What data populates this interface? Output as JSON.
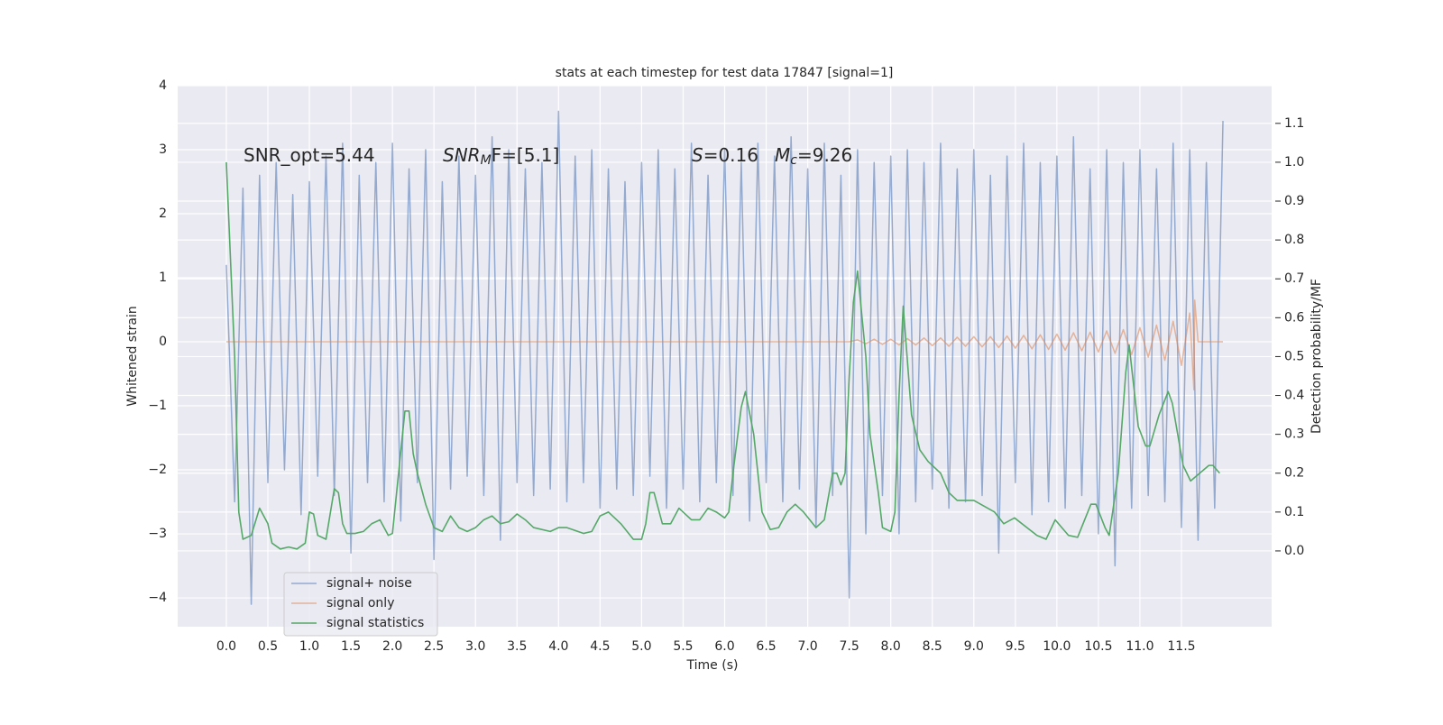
{
  "chart_data": {
    "type": "line",
    "title": "stats at each timestep for test data 17847 [signal=1]",
    "x_label": "Time (s)",
    "y_label": "Whitened strain",
    "y2_label": "Detection probability/MF",
    "xlim": [
      -0.586,
      12.586
    ],
    "ylim": [
      -4.45,
      4
    ],
    "y2lim": [
      -0.195,
      1.197
    ],
    "xticks": [
      {
        "value": 0,
        "label": "0.0"
      },
      0.5,
      {
        "value": 1,
        "label": "1.0"
      },
      1.5,
      {
        "value": 2,
        "label": "2.0"
      },
      2.5,
      {
        "value": 3,
        "label": "3.0"
      },
      3.5,
      {
        "value": 4,
        "label": "4.0"
      },
      4.5,
      {
        "value": 5,
        "label": "5.0"
      },
      5.5,
      {
        "value": 6,
        "label": "6.0"
      },
      6.5,
      {
        "value": 7,
        "label": "7.0"
      },
      7.5,
      {
        "value": 8,
        "label": "8.0"
      },
      8.5,
      {
        "value": 9,
        "label": "9.0"
      },
      9.5,
      {
        "value": 10,
        "label": "10.0"
      },
      10.5,
      {
        "value": 11,
        "label": "11.0"
      },
      11.5
    ],
    "yticks": [
      {
        "value": -4,
        "label": "−4"
      },
      {
        "value": -3,
        "label": "−3"
      },
      {
        "value": -2,
        "label": "−2"
      },
      {
        "value": -1,
        "label": "−1"
      },
      0,
      1,
      2,
      3,
      4
    ],
    "y2ticks": [
      {
        "value": 0,
        "label": "0.0"
      },
      0.1,
      0.2,
      0.3,
      0.4,
      0.5,
      0.6,
      0.7,
      0.8,
      0.9,
      {
        "value": 1,
        "label": "1.0"
      },
      1.1
    ],
    "grid": true,
    "legend": "lower left",
    "annotations": [
      {
        "rest": "SNR_opt=5.44"
      },
      {
        "base": "SNR",
        "sub": "M",
        "rest": "F=[5.1]"
      },
      {
        "base": "S",
        "rest": "=0.16"
      },
      {
        "base": "M",
        "sub": "c",
        "rest": "=9.26"
      }
    ],
    "series": [
      {
        "name": "signal+ noise",
        "color": "#4c72b0",
        "x": [
          0,
          0.1,
          0.2,
          0.3,
          0.4,
          0.5,
          0.6,
          0.7,
          0.8,
          0.9,
          1,
          1.1,
          1.2,
          1.3,
          1.4,
          1.5,
          1.6,
          1.7,
          1.8,
          1.9,
          2,
          2.1,
          2.2,
          2.3,
          2.4,
          2.5,
          2.6,
          2.7,
          2.8,
          2.9,
          3,
          3.1,
          3.2,
          3.3,
          3.4,
          3.5,
          3.6,
          3.7,
          3.8,
          3.9,
          4,
          4.1,
          4.2,
          4.3,
          4.4,
          4.5,
          4.6,
          4.7,
          4.8,
          4.9,
          5,
          5.1,
          5.2,
          5.3,
          5.4,
          5.5,
          5.6,
          5.7,
          5.8,
          5.9,
          6,
          6.1,
          6.2,
          6.3,
          6.4,
          6.5,
          6.6,
          6.7,
          6.8,
          6.9,
          7,
          7.1,
          7.2,
          7.3,
          7.4,
          7.5,
          7.6,
          7.7,
          7.8,
          7.9,
          8,
          8.1,
          8.2,
          8.3,
          8.4,
          8.5,
          8.6,
          8.7,
          8.8,
          8.9,
          9,
          9.1,
          9.2,
          9.3,
          9.4,
          9.5,
          9.6,
          9.7,
          9.8,
          9.9,
          10,
          10.1,
          10.2,
          10.3,
          10.4,
          10.5,
          10.6,
          10.7,
          10.8,
          10.9,
          11,
          11.1,
          11.2,
          11.3,
          11.4,
          11.5,
          11.6,
          11.7,
          11.8,
          11.9,
          12
        ],
        "values": [
          1.2,
          -2.5,
          2.4,
          -4.1,
          2.6,
          -2.2,
          2.8,
          -2.0,
          2.3,
          -2.7,
          2.5,
          -2.1,
          2.9,
          -2.4,
          3.1,
          -3.3,
          2.6,
          -2.2,
          2.8,
          -2.5,
          3.1,
          -2.8,
          2.7,
          -2.2,
          3.0,
          -3.4,
          2.5,
          -2.3,
          2.9,
          -2.1,
          2.6,
          -2.4,
          3.2,
          -3.1,
          3.0,
          -2.2,
          2.7,
          -2.4,
          2.8,
          -2.3,
          3.6,
          -2.5,
          2.9,
          -2.2,
          3.0,
          -2.6,
          2.7,
          -2.3,
          2.5,
          -2.4,
          2.8,
          -2.1,
          3.0,
          -2.6,
          2.7,
          -2.3,
          3.1,
          -2.5,
          2.6,
          -2.2,
          3.0,
          -2.4,
          2.8,
          -2.8,
          3.1,
          -2.2,
          2.9,
          -2.5,
          3.2,
          -2.3,
          2.7,
          -2.9,
          3.1,
          -2.4,
          2.6,
          -4.0,
          3.0,
          -3.0,
          2.8,
          -2.4,
          2.9,
          -3.0,
          3.0,
          -2.5,
          2.8,
          -2.3,
          3.1,
          -2.6,
          2.7,
          -2.5,
          3.0,
          -2.4,
          2.6,
          -3.3,
          2.9,
          -2.2,
          3.1,
          -2.7,
          2.8,
          -2.5,
          2.9,
          -2.6,
          3.2,
          -2.4,
          2.7,
          -3.0,
          3.0,
          -3.5,
          2.8,
          -2.6,
          3.0,
          -2.4,
          2.7,
          -2.5,
          3.1,
          -2.9,
          3.0,
          -3.1,
          2.8,
          -2.6,
          3.45
        ]
      },
      {
        "name": "signal only",
        "color": "#dd8452",
        "x": [
          0,
          7.5,
          7.6,
          7.7,
          7.8,
          7.9,
          8,
          8.1,
          8.2,
          8.3,
          8.4,
          8.5,
          8.6,
          8.7,
          8.8,
          8.9,
          9,
          9.1,
          9.2,
          9.3,
          9.4,
          9.5,
          9.6,
          9.7,
          9.8,
          9.9,
          10,
          10.1,
          10.2,
          10.3,
          10.4,
          10.5,
          10.6,
          10.7,
          10.8,
          10.9,
          11,
          11.1,
          11.2,
          11.3,
          11.4,
          11.5,
          11.6,
          11.65,
          11.66,
          11.7,
          12
        ],
        "values": [
          0,
          0,
          0.03,
          -0.03,
          0.04,
          -0.04,
          0.04,
          -0.05,
          0.05,
          -0.05,
          0.06,
          -0.06,
          0.06,
          -0.07,
          0.07,
          -0.07,
          0.08,
          -0.08,
          0.08,
          -0.09,
          0.09,
          -0.1,
          0.1,
          -0.11,
          0.11,
          -0.12,
          0.12,
          -0.13,
          0.14,
          -0.14,
          0.15,
          -0.16,
          0.17,
          -0.18,
          0.19,
          -0.2,
          0.22,
          -0.24,
          0.26,
          -0.29,
          0.32,
          -0.37,
          0.45,
          -0.75,
          0.65,
          0,
          0
        ]
      },
      {
        "name": "signal statistics",
        "color": "#55a868",
        "axis": "y2",
        "x": [
          0,
          0.1,
          0.15,
          0.2,
          0.3,
          0.4,
          0.5,
          0.55,
          0.65,
          0.75,
          0.85,
          0.95,
          1,
          1.05,
          1.1,
          1.2,
          1.3,
          1.35,
          1.4,
          1.45,
          1.55,
          1.65,
          1.75,
          1.85,
          1.95,
          2,
          2.05,
          2.15,
          2.2,
          2.25,
          2.3,
          2.4,
          2.5,
          2.6,
          2.7,
          2.8,
          2.9,
          3,
          3.1,
          3.2,
          3.3,
          3.4,
          3.5,
          3.6,
          3.7,
          3.9,
          4,
          4.1,
          4.3,
          4.4,
          4.5,
          4.6,
          4.75,
          4.9,
          5,
          5.05,
          5.1,
          5.15,
          5.25,
          5.35,
          5.45,
          5.6,
          5.7,
          5.8,
          5.9,
          6,
          6.05,
          6.1,
          6.2,
          6.25,
          6.35,
          6.45,
          6.55,
          6.65,
          6.75,
          6.85,
          6.95,
          7.1,
          7.2,
          7.3,
          7.35,
          7.4,
          7.45,
          7.5,
          7.55,
          7.6,
          7.7,
          7.75,
          7.85,
          7.9,
          8,
          8.05,
          8.1,
          8.15,
          8.25,
          8.35,
          8.45,
          8.6,
          8.7,
          8.8,
          9,
          9.25,
          9.36,
          9.49,
          9.76,
          9.87,
          9.98,
          10.14,
          10.25,
          10.41,
          10.47,
          10.58,
          10.63,
          10.74,
          10.83,
          10.87,
          10.98,
          11.07,
          11.12,
          11.23,
          11.34,
          11.39,
          11.52,
          11.61,
          11.72,
          11.83,
          11.88,
          11.96
        ],
        "values": [
          1.0,
          0.5,
          0.1,
          0.03,
          0.04,
          0.11,
          0.07,
          0.02,
          0.005,
          0.01,
          0.005,
          0.02,
          0.1,
          0.095,
          0.04,
          0.03,
          0.16,
          0.15,
          0.07,
          0.045,
          0.045,
          0.05,
          0.07,
          0.08,
          0.04,
          0.045,
          0.15,
          0.36,
          0.36,
          0.25,
          0.2,
          0.12,
          0.06,
          0.05,
          0.09,
          0.06,
          0.05,
          0.06,
          0.08,
          0.09,
          0.07,
          0.075,
          0.095,
          0.08,
          0.06,
          0.05,
          0.06,
          0.06,
          0.045,
          0.05,
          0.09,
          0.1,
          0.07,
          0.03,
          0.03,
          0.07,
          0.15,
          0.15,
          0.07,
          0.07,
          0.11,
          0.08,
          0.08,
          0.11,
          0.1,
          0.085,
          0.1,
          0.2,
          0.37,
          0.41,
          0.3,
          0.1,
          0.055,
          0.06,
          0.1,
          0.12,
          0.1,
          0.06,
          0.08,
          0.2,
          0.2,
          0.17,
          0.2,
          0.45,
          0.64,
          0.72,
          0.5,
          0.3,
          0.15,
          0.06,
          0.05,
          0.1,
          0.4,
          0.63,
          0.35,
          0.26,
          0.23,
          0.2,
          0.15,
          0.13,
          0.13,
          0.1,
          0.07,
          0.085,
          0.04,
          0.03,
          0.08,
          0.04,
          0.035,
          0.12,
          0.12,
          0.06,
          0.04,
          0.2,
          0.46,
          0.53,
          0.32,
          0.27,
          0.27,
          0.35,
          0.41,
          0.38,
          0.22,
          0.18,
          0.2,
          0.22,
          0.22,
          0.2
        ]
      }
    ]
  }
}
